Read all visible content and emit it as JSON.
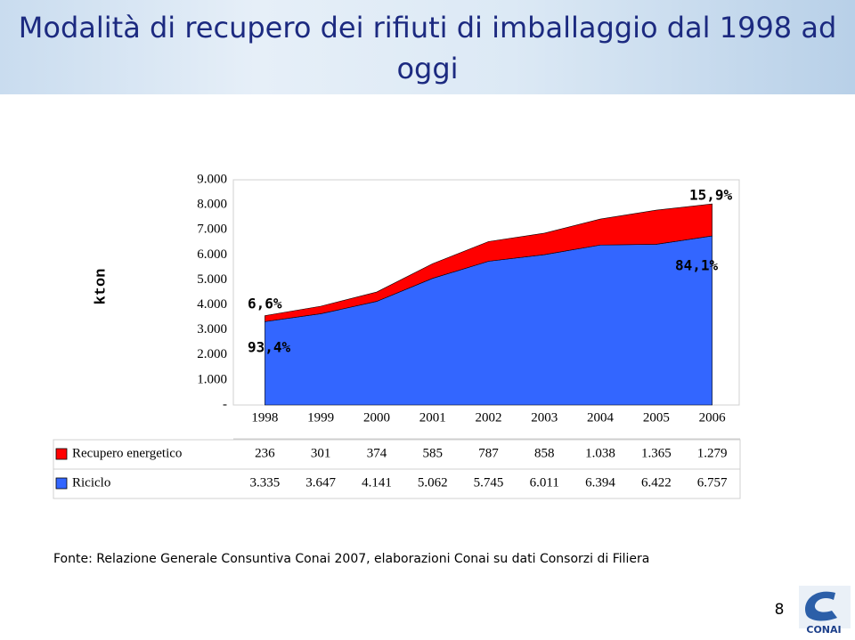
{
  "chart_data": {
    "type": "stacked-area",
    "title": "Modalità di recupero dei rifiuti di imballaggio dal 1998 ad oggi",
    "y_label": "kton",
    "categories": [
      "1998",
      "1999",
      "2000",
      "2001",
      "2002",
      "2003",
      "2004",
      "2005",
      "2006"
    ],
    "series": [
      {
        "name": "Riciclo",
        "color": "#3366ff",
        "values": [
          3335,
          3647,
          4141,
          5062,
          5745,
          6011,
          6394,
          6422,
          6757
        ],
        "value_labels": [
          "3.335",
          "3.647",
          "4.141",
          "5.062",
          "5.745",
          "6.011",
          "6.394",
          "6.422",
          "6.757"
        ]
      },
      {
        "name": "Recupero energetico",
        "color": "#ff0000",
        "values": [
          236,
          301,
          374,
          585,
          787,
          858,
          1038,
          1365,
          1279
        ],
        "value_labels": [
          "236",
          "301",
          "374",
          "585",
          "787",
          "858",
          "1.038",
          "1.365",
          "1.279"
        ]
      }
    ],
    "ylim": [
      0,
      9000
    ],
    "yticks": [
      {
        "value": 0,
        "label": "-"
      },
      {
        "value": 1000,
        "label": "1.000"
      },
      {
        "value": 2000,
        "label": "2.000"
      },
      {
        "value": 3000,
        "label": "3.000"
      },
      {
        "value": 4000,
        "label": "4.000"
      },
      {
        "value": 5000,
        "label": "5.000"
      },
      {
        "value": 6000,
        "label": "6.000"
      },
      {
        "value": 7000,
        "label": "7.000"
      },
      {
        "value": 8000,
        "label": "8.000"
      },
      {
        "value": 9000,
        "label": "9.000"
      }
    ],
    "grid": false,
    "annotations": [
      "6,6%",
      "93,4%",
      "15,9%",
      "84,1%"
    ]
  },
  "footnote": "Fonte: Relazione Generale Consuntiva Conai 2007, elaborazioni Conai su dati Consorzi di Filiera",
  "page_number": 8,
  "logo_text": "CONAI"
}
